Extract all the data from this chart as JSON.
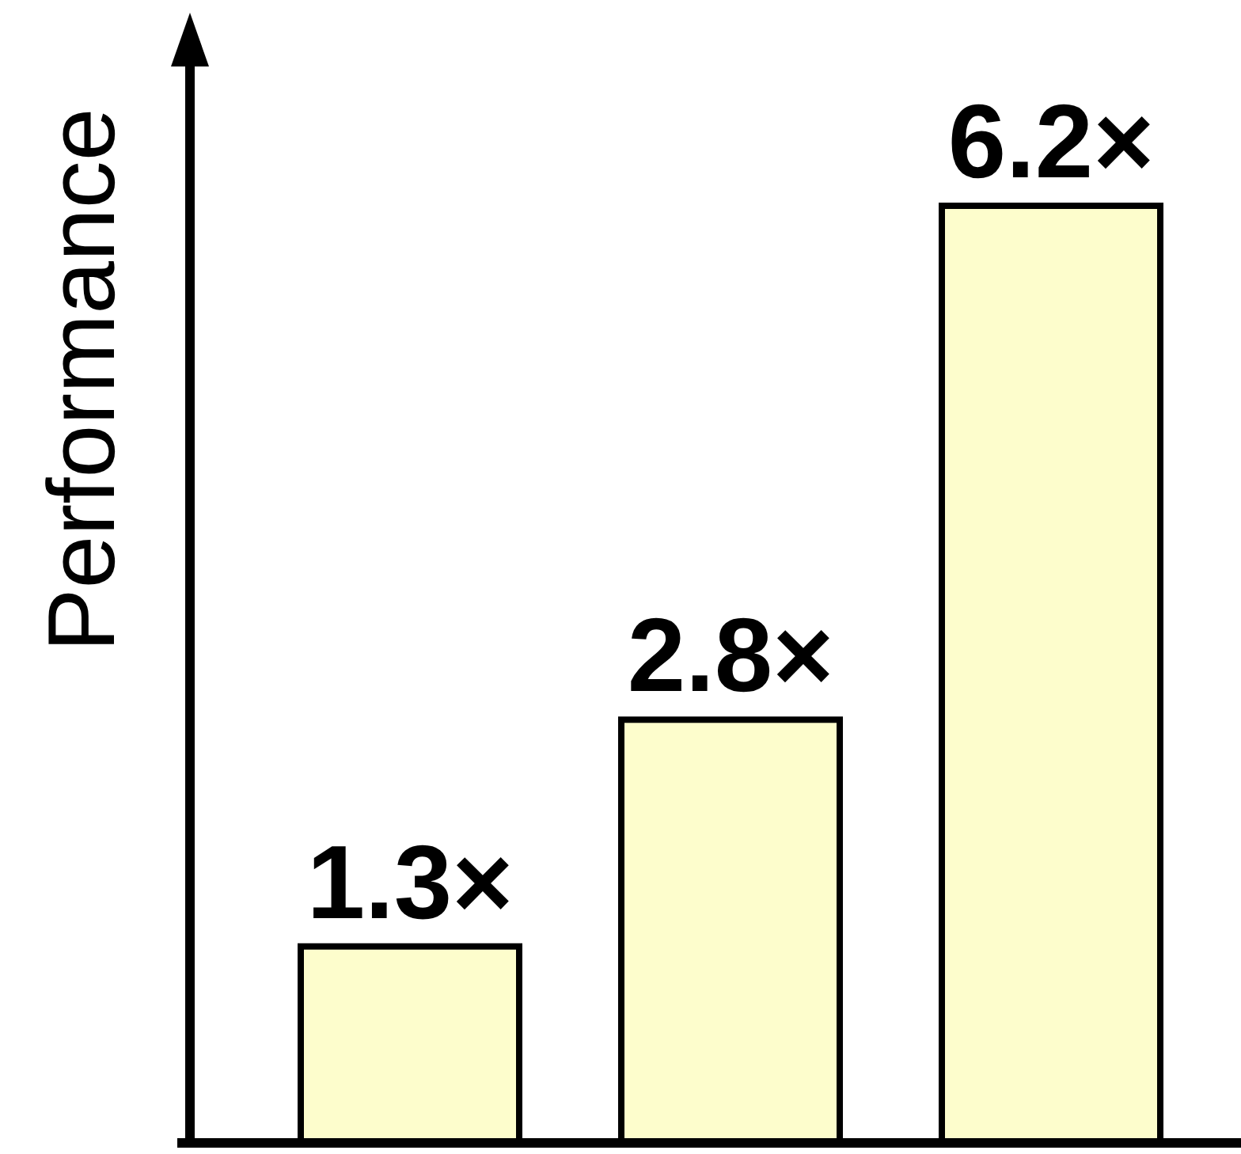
{
  "chart_data": {
    "type": "bar",
    "ylabel": "Performance",
    "categories": [
      null,
      null,
      null
    ],
    "values": [
      1.3,
      2.8,
      6.2
    ],
    "value_labels": [
      "1.3×",
      "2.8×",
      "6.2×"
    ],
    "color": "#fdfdcc"
  }
}
